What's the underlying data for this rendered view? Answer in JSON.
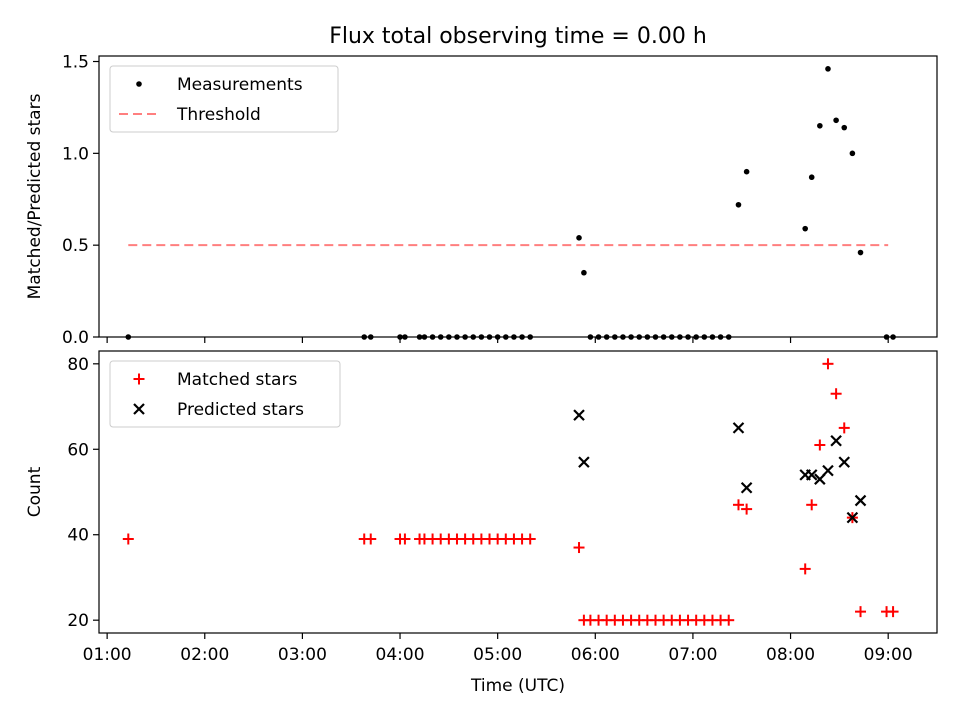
{
  "figure_title": "Flux total observing time = 0.00 h",
  "colors": {
    "measurement": "#000000",
    "threshold": "#ff7f7f",
    "matched": "#ff0000",
    "predicted": "#000000",
    "axes": "#000000"
  },
  "chart_data": [
    {
      "type": "scatter",
      "ylabel": "Matched/Predicted stars",
      "xlabel": "",
      "x_axis": "time",
      "xlim": [
        "00:55",
        "09:30"
      ],
      "ylim": [
        0,
        1.53
      ],
      "y_ticks": [
        0.0,
        0.5,
        1.0,
        1.5
      ],
      "y_tick_labels": [
        "0.0",
        "0.5",
        "1.0",
        "1.5"
      ],
      "x_ticks": [
        "01:00",
        "02:00",
        "03:00",
        "04:00",
        "05:00",
        "06:00",
        "07:00",
        "08:00",
        "09:00"
      ],
      "x_tick_labels_visible": false,
      "grid": false,
      "legend": {
        "position": "upper left",
        "entries": [
          {
            "label": "Measurements",
            "marker": "dot"
          },
          {
            "label": "Threshold",
            "marker": "dashed-line"
          }
        ]
      },
      "series": [
        {
          "name": "Measurements",
          "marker": "dot",
          "points": [
            [
              "01:13",
              0
            ],
            [
              "03:38",
              0
            ],
            [
              "03:42",
              0
            ],
            [
              "04:00",
              0
            ],
            [
              "04:03",
              0
            ],
            [
              "04:12",
              0
            ],
            [
              "04:15",
              0
            ],
            [
              "04:20",
              0
            ],
            [
              "04:25",
              0
            ],
            [
              "04:30",
              0
            ],
            [
              "04:35",
              0
            ],
            [
              "04:40",
              0
            ],
            [
              "04:45",
              0
            ],
            [
              "04:50",
              0
            ],
            [
              "04:55",
              0
            ],
            [
              "05:00",
              0
            ],
            [
              "05:05",
              0
            ],
            [
              "05:10",
              0
            ],
            [
              "05:15",
              0
            ],
            [
              "05:20",
              0
            ],
            [
              "05:50",
              0.54
            ],
            [
              "05:53",
              0.35
            ],
            [
              "05:57",
              0
            ],
            [
              "06:02",
              0
            ],
            [
              "06:07",
              0
            ],
            [
              "06:12",
              0
            ],
            [
              "06:17",
              0
            ],
            [
              "06:22",
              0
            ],
            [
              "06:27",
              0
            ],
            [
              "06:32",
              0
            ],
            [
              "06:37",
              0
            ],
            [
              "06:42",
              0
            ],
            [
              "06:47",
              0
            ],
            [
              "06:52",
              0
            ],
            [
              "06:57",
              0
            ],
            [
              "07:02",
              0
            ],
            [
              "07:07",
              0
            ],
            [
              "07:12",
              0
            ],
            [
              "07:17",
              0
            ],
            [
              "07:22",
              0
            ],
            [
              "07:28",
              0.72
            ],
            [
              "07:33",
              0.9
            ],
            [
              "08:09",
              0.59
            ],
            [
              "08:13",
              0.87
            ],
            [
              "08:18",
              1.15
            ],
            [
              "08:23",
              1.46
            ],
            [
              "08:28",
              1.18
            ],
            [
              "08:33",
              1.14
            ],
            [
              "08:38",
              1.0
            ],
            [
              "08:43",
              0.46
            ],
            [
              "08:59",
              0
            ],
            [
              "09:03",
              0
            ]
          ]
        },
        {
          "name": "Threshold",
          "marker": "dashed-line",
          "points": [
            [
              "01:13",
              0.5
            ],
            [
              "09:00",
              0.5
            ]
          ]
        }
      ]
    },
    {
      "type": "scatter",
      "ylabel": "Count",
      "xlabel": "Time (UTC)",
      "x_axis": "time",
      "xlim": [
        "00:55",
        "09:30"
      ],
      "ylim": [
        17,
        83
      ],
      "y_ticks": [
        20,
        40,
        60,
        80
      ],
      "y_tick_labels": [
        "20",
        "40",
        "60",
        "80"
      ],
      "x_ticks": [
        "01:00",
        "02:00",
        "03:00",
        "04:00",
        "05:00",
        "06:00",
        "07:00",
        "08:00",
        "09:00"
      ],
      "x_tick_labels": [
        "01:00",
        "02:00",
        "03:00",
        "04:00",
        "05:00",
        "06:00",
        "07:00",
        "08:00",
        "09:00"
      ],
      "grid": false,
      "legend": {
        "position": "upper left",
        "entries": [
          {
            "label": "Matched stars",
            "marker": "plus"
          },
          {
            "label": "Predicted stars",
            "marker": "x"
          }
        ]
      },
      "series": [
        {
          "name": "Matched stars",
          "marker": "plus",
          "points": [
            [
              "01:13",
              39
            ],
            [
              "03:38",
              39
            ],
            [
              "03:42",
              39
            ],
            [
              "04:00",
              39
            ],
            [
              "04:03",
              39
            ],
            [
              "04:12",
              39
            ],
            [
              "04:15",
              39
            ],
            [
              "04:20",
              39
            ],
            [
              "04:25",
              39
            ],
            [
              "04:30",
              39
            ],
            [
              "04:35",
              39
            ],
            [
              "04:40",
              39
            ],
            [
              "04:45",
              39
            ],
            [
              "04:50",
              39
            ],
            [
              "04:55",
              39
            ],
            [
              "05:00",
              39
            ],
            [
              "05:05",
              39
            ],
            [
              "05:10",
              39
            ],
            [
              "05:15",
              39
            ],
            [
              "05:20",
              39
            ],
            [
              "05:50",
              37
            ],
            [
              "05:53",
              20
            ],
            [
              "05:57",
              20
            ],
            [
              "06:02",
              20
            ],
            [
              "06:07",
              20
            ],
            [
              "06:12",
              20
            ],
            [
              "06:17",
              20
            ],
            [
              "06:22",
              20
            ],
            [
              "06:27",
              20
            ],
            [
              "06:32",
              20
            ],
            [
              "06:37",
              20
            ],
            [
              "06:42",
              20
            ],
            [
              "06:47",
              20
            ],
            [
              "06:52",
              20
            ],
            [
              "06:57",
              20
            ],
            [
              "07:02",
              20
            ],
            [
              "07:07",
              20
            ],
            [
              "07:12",
              20
            ],
            [
              "07:17",
              20
            ],
            [
              "07:22",
              20
            ],
            [
              "07:28",
              47
            ],
            [
              "07:33",
              46
            ],
            [
              "08:09",
              32
            ],
            [
              "08:13",
              47
            ],
            [
              "08:18",
              61
            ],
            [
              "08:23",
              80
            ],
            [
              "08:28",
              73
            ],
            [
              "08:33",
              65
            ],
            [
              "08:38",
              44
            ],
            [
              "08:43",
              22
            ],
            [
              "08:59",
              22
            ],
            [
              "09:03",
              22
            ]
          ]
        },
        {
          "name": "Predicted stars",
          "marker": "x",
          "points": [
            [
              "05:50",
              68
            ],
            [
              "05:53",
              57
            ],
            [
              "07:28",
              65
            ],
            [
              "07:33",
              51
            ],
            [
              "08:09",
              54
            ],
            [
              "08:13",
              54
            ],
            [
              "08:18",
              53
            ],
            [
              "08:23",
              55
            ],
            [
              "08:28",
              62
            ],
            [
              "08:33",
              57
            ],
            [
              "08:38",
              44
            ],
            [
              "08:43",
              48
            ]
          ]
        }
      ]
    }
  ]
}
